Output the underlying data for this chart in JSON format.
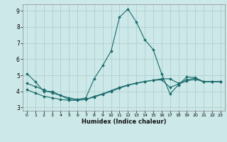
{
  "xlabel": "Humidex (Indice chaleur)",
  "bg_color": "#cce8e8",
  "line_color": "#1a6b6b",
  "grid_color": "#aacccc",
  "xlim": [
    -0.5,
    23.5
  ],
  "ylim": [
    2.8,
    9.4
  ],
  "yticks": [
    3,
    4,
    5,
    6,
    7,
    8,
    9
  ],
  "xticks": [
    0,
    1,
    2,
    3,
    4,
    5,
    6,
    7,
    8,
    9,
    10,
    11,
    12,
    13,
    14,
    15,
    16,
    17,
    18,
    19,
    20,
    21,
    22,
    23
  ],
  "line1_x": [
    0,
    1,
    2,
    3,
    4,
    5,
    6,
    7,
    8,
    9,
    10,
    11,
    12,
    13,
    14,
    15,
    16,
    17,
    18,
    19,
    20,
    21,
    22,
    23
  ],
  "line1_y": [
    5.1,
    4.6,
    4.0,
    4.0,
    3.75,
    3.5,
    3.5,
    3.6,
    4.8,
    5.6,
    6.5,
    8.6,
    9.1,
    8.3,
    7.2,
    6.6,
    5.1,
    3.85,
    4.4,
    4.9,
    4.85,
    4.6,
    4.6,
    4.6
  ],
  "line2_x": [
    0,
    1,
    2,
    3,
    4,
    5,
    6,
    7,
    8,
    9,
    10,
    11,
    12,
    13,
    14,
    15,
    16,
    17,
    18,
    19,
    20,
    21,
    22,
    23
  ],
  "line2_y": [
    4.1,
    3.9,
    3.7,
    3.6,
    3.5,
    3.45,
    3.45,
    3.5,
    3.7,
    3.85,
    4.05,
    4.25,
    4.4,
    4.52,
    4.62,
    4.68,
    4.72,
    4.25,
    4.45,
    4.65,
    4.75,
    4.6,
    4.6,
    4.6
  ],
  "line3_x": [
    0,
    1,
    2,
    3,
    4,
    5,
    6,
    7,
    8,
    9,
    10,
    11,
    12,
    13,
    14,
    15,
    16,
    17,
    18,
    19,
    20,
    21,
    22,
    23
  ],
  "line3_y": [
    4.5,
    4.3,
    4.1,
    3.9,
    3.75,
    3.6,
    3.5,
    3.5,
    3.65,
    3.82,
    4.0,
    4.2,
    4.38,
    4.5,
    4.6,
    4.7,
    4.78,
    4.78,
    4.5,
    4.72,
    4.82,
    4.6,
    4.6,
    4.6
  ]
}
